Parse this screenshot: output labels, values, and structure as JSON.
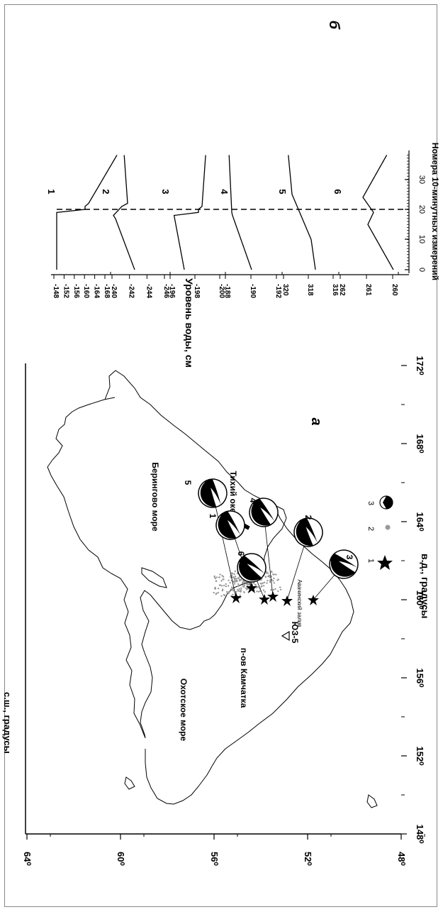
{
  "panel_a": {
    "label": "а",
    "x_axis": {
      "label": "в.д., градусы",
      "ticks": [
        "148⁰",
        "152⁰",
        "156⁰",
        "160⁰",
        "164⁰",
        "168⁰",
        "172⁰"
      ]
    },
    "y_axis": {
      "label": "с.ш., градусы",
      "ticks": [
        "48⁰",
        "52⁰",
        "56⁰",
        "60⁰",
        "64⁰"
      ]
    },
    "place_names": {
      "okhotsk": "Охотское море",
      "kamchatka": "п-ов Камчатка",
      "bering": "Берингово море",
      "pacific": "Тихий океан",
      "avacha": "Авачинский залив",
      "station": "ЮЗ-5"
    },
    "mechanism_labels": [
      "5",
      "1",
      "6",
      "4",
      "2",
      "3"
    ],
    "legend": [
      "1",
      "2",
      "3"
    ]
  },
  "panel_b": {
    "label": "б",
    "y_label": "Уровень воды, см",
    "x_label": "Номера 10-минутных измерений",
    "x_ticks": [
      "0",
      "10",
      "20",
      "30"
    ],
    "trace_labels": [
      "1",
      "2",
      "3",
      "4",
      "5",
      "6"
    ],
    "y_ticks": [
      [
        "-148",
        "-152",
        "-156",
        "-160",
        "-164",
        "-168"
      ],
      [
        "-240",
        "-242",
        "-244",
        "-246"
      ],
      [
        "-196",
        "-198",
        "-200"
      ],
      [
        "-188",
        "-190",
        "-192"
      ],
      [
        "320",
        "318",
        "316"
      ],
      [
        "262",
        "261",
        "260"
      ]
    ]
  },
  "colors": {
    "epicenter_cloud": "#999999",
    "line": "#000000"
  }
}
